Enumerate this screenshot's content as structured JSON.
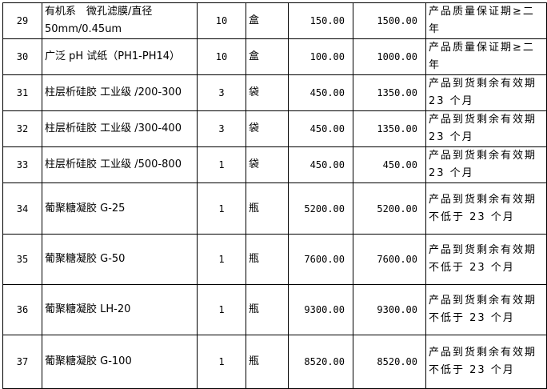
{
  "rows": [
    {
      "no": "29",
      "name": "有机系　微孔滤膜/直径 50mm/0.45um",
      "qty": "10",
      "unit": "盒",
      "price": "150.00",
      "total": "1500.00",
      "remark": "产品质量保证期≥二年"
    },
    {
      "no": "30",
      "name": "广泛 pH 试纸（PH1-PH14）",
      "qty": "10",
      "unit": "盒",
      "price": "100.00",
      "total": "1000.00",
      "remark": "产品质量保证期≥二年"
    },
    {
      "no": "31",
      "name": "柱层析硅胶 工业级 /200-300",
      "qty": "3",
      "unit": "袋",
      "price": "450.00",
      "total": "1350.00",
      "remark": "产品到货剩余有效期 23 个月"
    },
    {
      "no": "32",
      "name": "柱层析硅胶 工业级 /300-400",
      "qty": "3",
      "unit": "袋",
      "price": "450.00",
      "total": "1350.00",
      "remark": "产品到货剩余有效期 23 个月"
    },
    {
      "no": "33",
      "name": "柱层析硅胶 工业级 /500-800",
      "qty": "1",
      "unit": "袋",
      "price": "450.00",
      "total": "450.00",
      "remark": "产品到货剩余有效期 23 个月"
    },
    {
      "no": "34",
      "name": "葡聚糖凝胶 G-25",
      "qty": "1",
      "unit": "瓶",
      "price": "5200.00",
      "total": "5200.00",
      "remark": "产品到货剩余有效期不低于 23 个月"
    },
    {
      "no": "35",
      "name": "葡聚糖凝胶 G-50",
      "qty": "1",
      "unit": "瓶",
      "price": "7600.00",
      "total": "7600.00",
      "remark": "产品到货剩余有效期不低于 23 个月"
    },
    {
      "no": "36",
      "name": "葡聚糖凝胶 LH-20",
      "qty": "1",
      "unit": "瓶",
      "price": "9300.00",
      "total": "9300.00",
      "remark": "产品到货剩余有效期不低于 23 个月"
    },
    {
      "no": "37",
      "name": "葡聚糖凝胶 G-100",
      "qty": "1",
      "unit": "瓶",
      "price": "8520.00",
      "total": "8520.00",
      "remark": "产品到货剩余有效期不低于 23 个月"
    }
  ]
}
